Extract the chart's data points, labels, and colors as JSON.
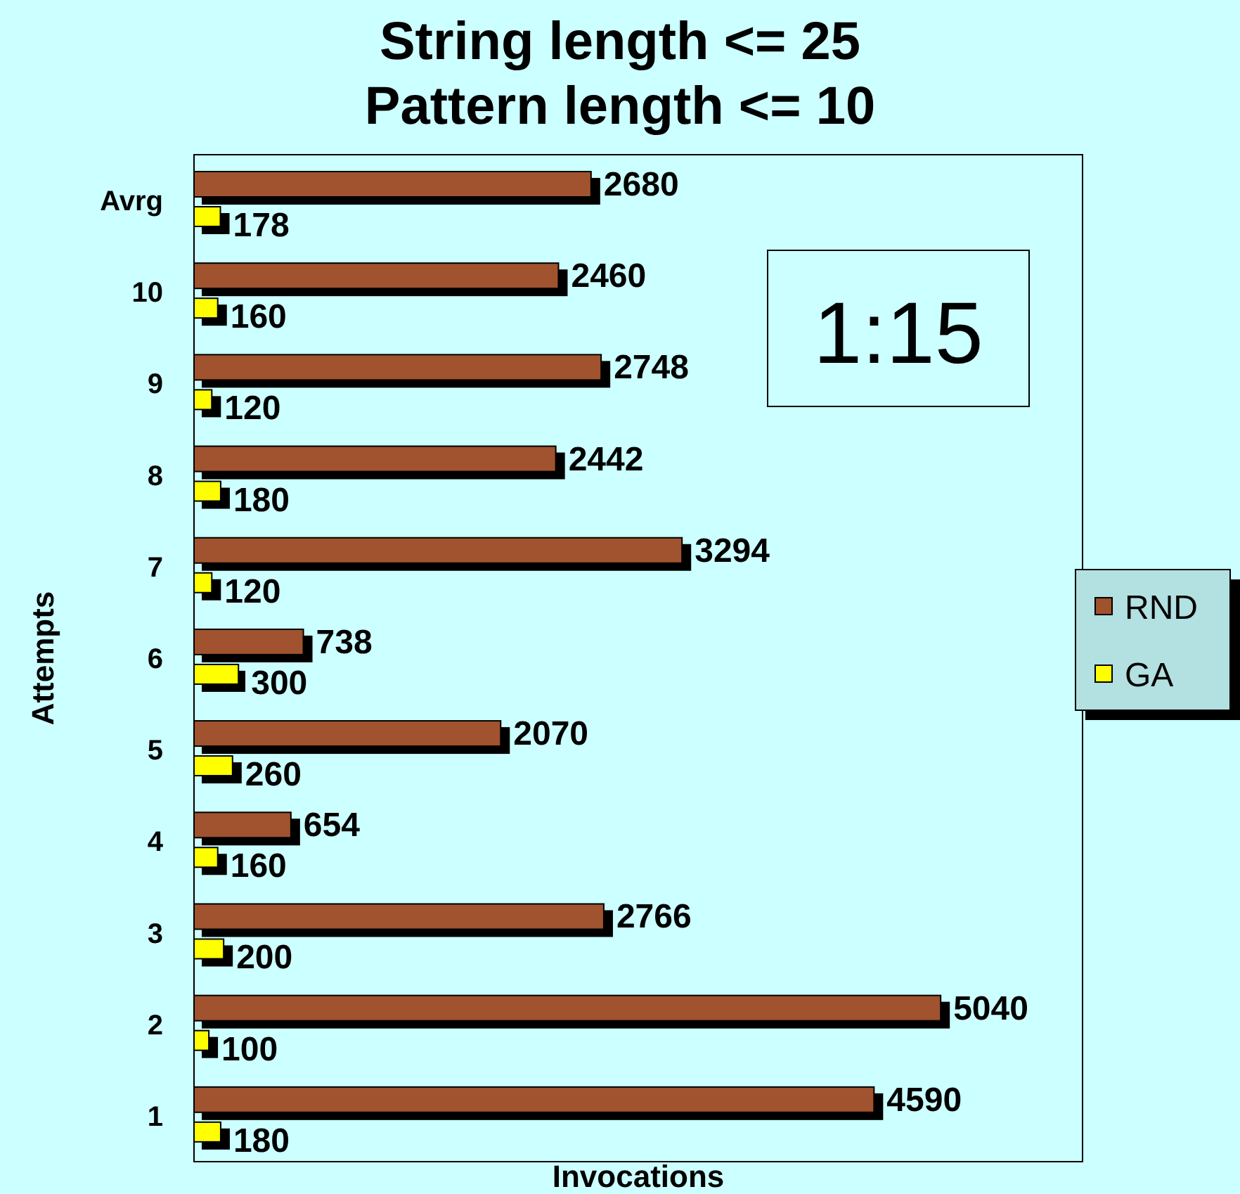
{
  "chart_data": {
    "type": "bar",
    "orientation": "horizontal",
    "title": "String length <= 25\nPattern length <= 10",
    "xlabel": "Invocations",
    "ylabel": "Attempts",
    "categories": [
      "Avrg",
      "10",
      "9",
      "8",
      "7",
      "6",
      "5",
      "4",
      "3",
      "2",
      "1"
    ],
    "series": [
      {
        "name": "RND",
        "color": "#a0522d",
        "values": [
          2680,
          2460,
          2748,
          2442,
          3294,
          738,
          2070,
          654,
          2766,
          5040,
          4590
        ]
      },
      {
        "name": "GA",
        "color": "#ffff00",
        "values": [
          178,
          160,
          120,
          180,
          120,
          300,
          260,
          160,
          200,
          100,
          180
        ]
      }
    ],
    "data_labels": true,
    "legend": "right",
    "grid": false,
    "annotations": [
      "1:15"
    ]
  }
}
